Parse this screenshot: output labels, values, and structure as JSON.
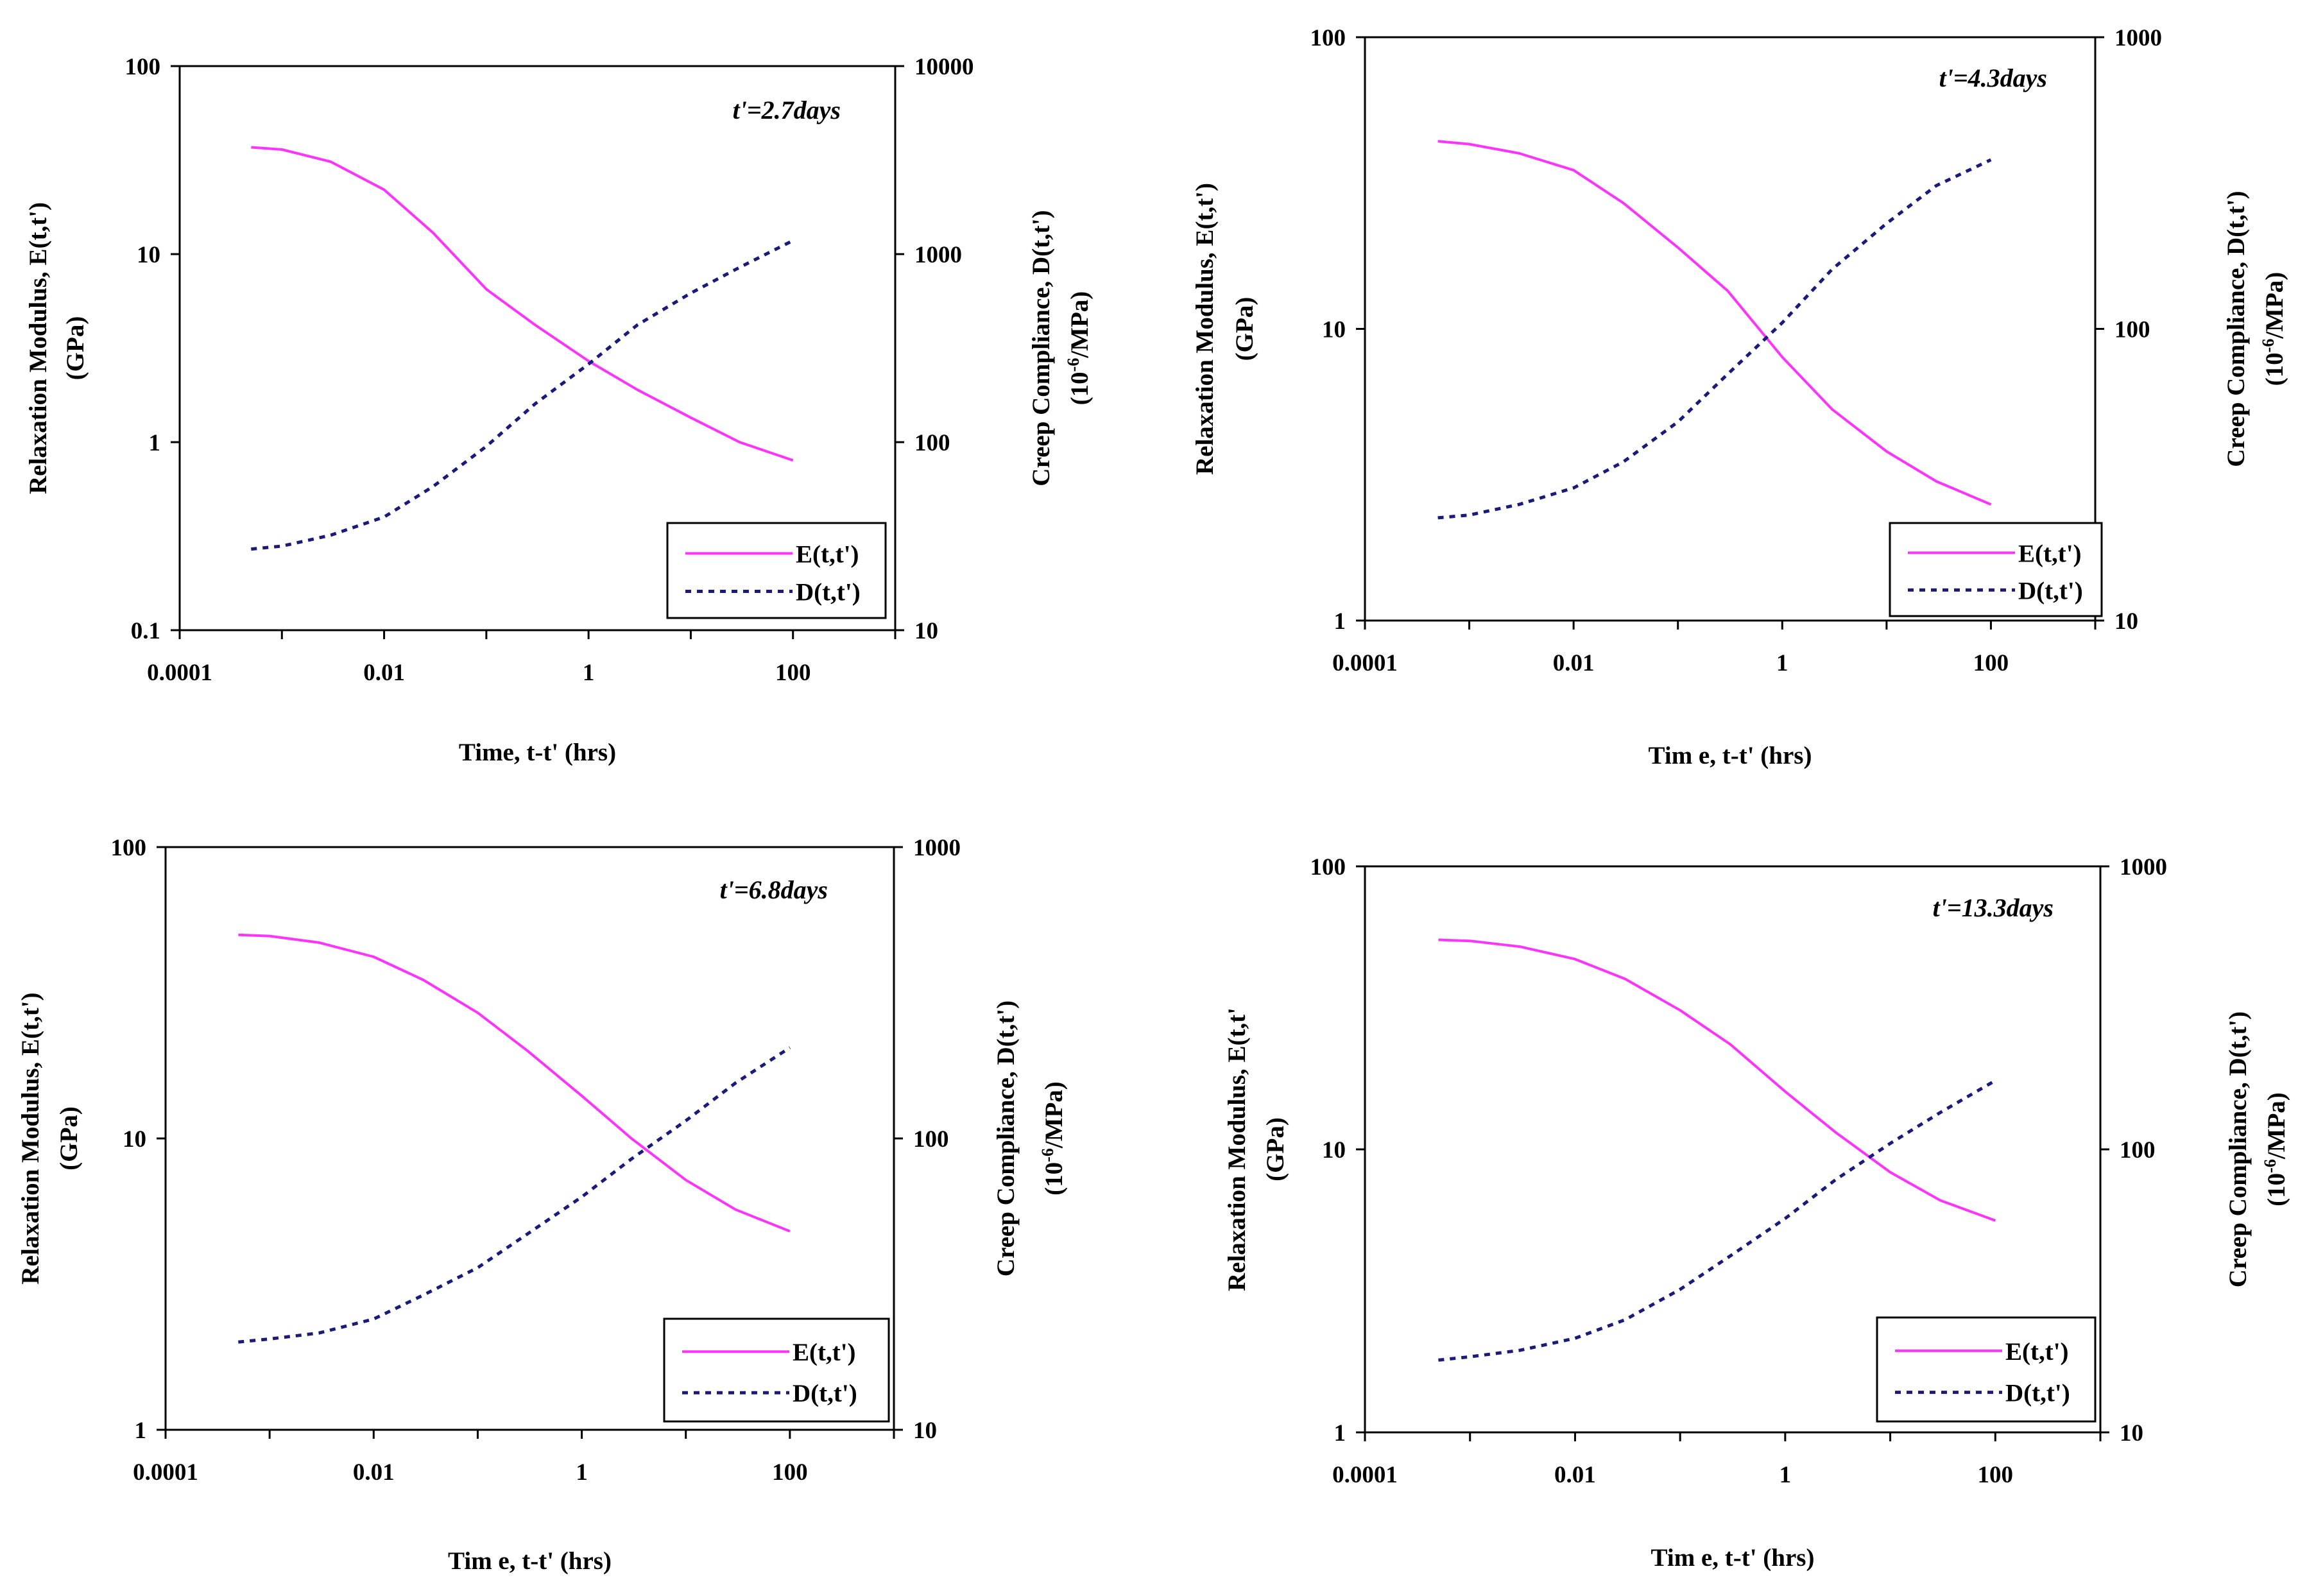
{
  "chart_data": [
    {
      "type": "line",
      "title": "t'=2.7days",
      "xlabel": "Time, t-t' (hrs)",
      "ylabel": [
        "Relaxation Modulus, E(t,t')",
        "(GPa)"
      ],
      "y2label": [
        "Creep Compliance, D(t,t')",
        "(10^-6/MPa)"
      ],
      "xscale": "log",
      "yscale": "log",
      "y2scale": "log",
      "xlim": [
        0.0001,
        1000
      ],
      "ylim": [
        0.1,
        100
      ],
      "y2lim": [
        10,
        10000
      ],
      "xticks": [
        "0.0001",
        "0.01",
        "1",
        "100"
      ],
      "yticks": [
        "0.1",
        "1",
        "10",
        "100"
      ],
      "y2ticks": [
        "10",
        "100",
        "1000",
        "10000"
      ],
      "legend_position": "bottom-right",
      "series": [
        {
          "name": "E(t,t')",
          "axis": "left",
          "color": "#ff33ff",
          "style": "solid",
          "x": [
            0.0005,
            0.001,
            0.003,
            0.01,
            0.03,
            0.1,
            0.3,
            1,
            3,
            10,
            30,
            100
          ],
          "y": [
            37,
            36,
            31,
            22,
            13,
            6.5,
            4.2,
            2.7,
            1.9,
            1.35,
            1.0,
            0.8
          ]
        },
        {
          "name": "D(t,t')",
          "axis": "right",
          "color": "#1a1a7a",
          "style": "dotted",
          "x": [
            0.0005,
            0.001,
            0.003,
            0.01,
            0.03,
            0.1,
            0.3,
            1,
            3,
            10,
            30,
            100
          ],
          "y": [
            27,
            28,
            32,
            40,
            58,
            95,
            160,
            260,
            420,
            620,
            850,
            1180
          ]
        }
      ]
    },
    {
      "type": "line",
      "title": "t'=4.3days",
      "xlabel": "Tim e, t-t' (hrs)",
      "ylabel": [
        "Relaxation Modulus, E(t,t')",
        "(GPa)"
      ],
      "y2label": [
        "Creep Compliance, D(t,t')",
        "(10^-6/MPa)"
      ],
      "xscale": "log",
      "yscale": "log",
      "y2scale": "log",
      "xlim": [
        0.0001,
        1000
      ],
      "ylim": [
        1,
        100
      ],
      "y2lim": [
        10,
        1000
      ],
      "xticks": [
        "0.0001",
        "0.01",
        "1",
        "100"
      ],
      "yticks": [
        "1",
        "10",
        "100"
      ],
      "y2ticks": [
        "10",
        "100",
        "1000"
      ],
      "legend_position": "bottom-right",
      "series": [
        {
          "name": "E(t,t')",
          "axis": "left",
          "color": "#ff33ff",
          "style": "solid",
          "x": [
            0.0005,
            0.001,
            0.003,
            0.01,
            0.03,
            0.1,
            0.3,
            1,
            3,
            10,
            30,
            100
          ],
          "y": [
            44,
            43,
            40,
            35,
            27,
            19,
            13.5,
            8,
            5.3,
            3.8,
            3.0,
            2.5
          ]
        },
        {
          "name": "D(t,t')",
          "axis": "right",
          "color": "#1a1a7a",
          "style": "dotted",
          "x": [
            0.0005,
            0.001,
            0.003,
            0.01,
            0.03,
            0.1,
            0.3,
            1,
            3,
            10,
            30,
            100
          ],
          "y": [
            22.5,
            23,
            25,
            28.5,
            35,
            48,
            70,
            105,
            160,
            230,
            310,
            380
          ]
        }
      ]
    },
    {
      "type": "line",
      "title": "t'=6.8days",
      "xlabel": "Tim e, t-t' (hrs)",
      "ylabel": [
        "Relaxation Modulus, E(t,t')",
        "(GPa)"
      ],
      "y2label": [
        "Creep Compliance, D(t,t')",
        "(10^-6/MPa)"
      ],
      "xscale": "log",
      "yscale": "log",
      "y2scale": "log",
      "xlim": [
        0.0001,
        1000
      ],
      "ylim": [
        1,
        100
      ],
      "y2lim": [
        10,
        1000
      ],
      "xticks": [
        "0.0001",
        "0.01",
        "1",
        "100"
      ],
      "yticks": [
        "1",
        "10",
        "100"
      ],
      "y2ticks": [
        "10",
        "100",
        "1000"
      ],
      "legend_position": "bottom-right",
      "series": [
        {
          "name": "E(t,t')",
          "axis": "left",
          "color": "#ff33ff",
          "style": "solid",
          "x": [
            0.0005,
            0.001,
            0.003,
            0.01,
            0.03,
            0.1,
            0.3,
            1,
            3,
            10,
            30,
            100
          ],
          "y": [
            50,
            49.5,
            47,
            42,
            35,
            27,
            20,
            14,
            10,
            7.2,
            5.7,
            4.8
          ]
        },
        {
          "name": "D(t,t')",
          "axis": "right",
          "color": "#1a1a7a",
          "style": "dotted",
          "x": [
            0.0005,
            0.001,
            0.003,
            0.01,
            0.03,
            0.1,
            0.3,
            1,
            3,
            10,
            30,
            100
          ],
          "y": [
            20,
            20.5,
            21.5,
            24,
            29,
            36,
            47,
            63,
            85,
            115,
            155,
            205
          ]
        }
      ]
    },
    {
      "type": "line",
      "title": "t'=13.3days",
      "xlabel": "Tim e, t-t' (hrs)",
      "ylabel": [
        "Relaxation Modulus, E(t,t'",
        "(GPa)"
      ],
      "y2label": [
        "Creep Compliance, D(t,t')",
        "(10^-6/MPa)"
      ],
      "xscale": "log",
      "yscale": "log",
      "y2scale": "log",
      "xlim": [
        0.0001,
        1000
      ],
      "ylim": [
        1,
        100
      ],
      "y2lim": [
        10,
        1000
      ],
      "xticks": [
        "0.0001",
        "0.01",
        "1",
        "100"
      ],
      "yticks": [
        "1",
        "10",
        "100"
      ],
      "y2ticks": [
        "10",
        "100",
        "1000"
      ],
      "legend_position": "bottom-right",
      "series": [
        {
          "name": "E(t,t')",
          "axis": "left",
          "color": "#ff33ff",
          "style": "solid",
          "x": [
            0.0005,
            0.001,
            0.003,
            0.01,
            0.03,
            0.1,
            0.3,
            1,
            3,
            10,
            30,
            100
          ],
          "y": [
            55,
            54.5,
            52,
            47,
            40,
            31,
            23.5,
            16,
            11.5,
            8.3,
            6.6,
            5.6
          ]
        },
        {
          "name": "D(t,t')",
          "axis": "right",
          "color": "#1a1a7a",
          "style": "dotted",
          "x": [
            0.0005,
            0.001,
            0.003,
            0.01,
            0.03,
            0.1,
            0.3,
            1,
            3,
            10,
            30,
            100
          ],
          "y": [
            18,
            18.5,
            19.5,
            21.5,
            25,
            32,
            42,
            57,
            78,
            105,
            135,
            175
          ]
        }
      ]
    }
  ]
}
